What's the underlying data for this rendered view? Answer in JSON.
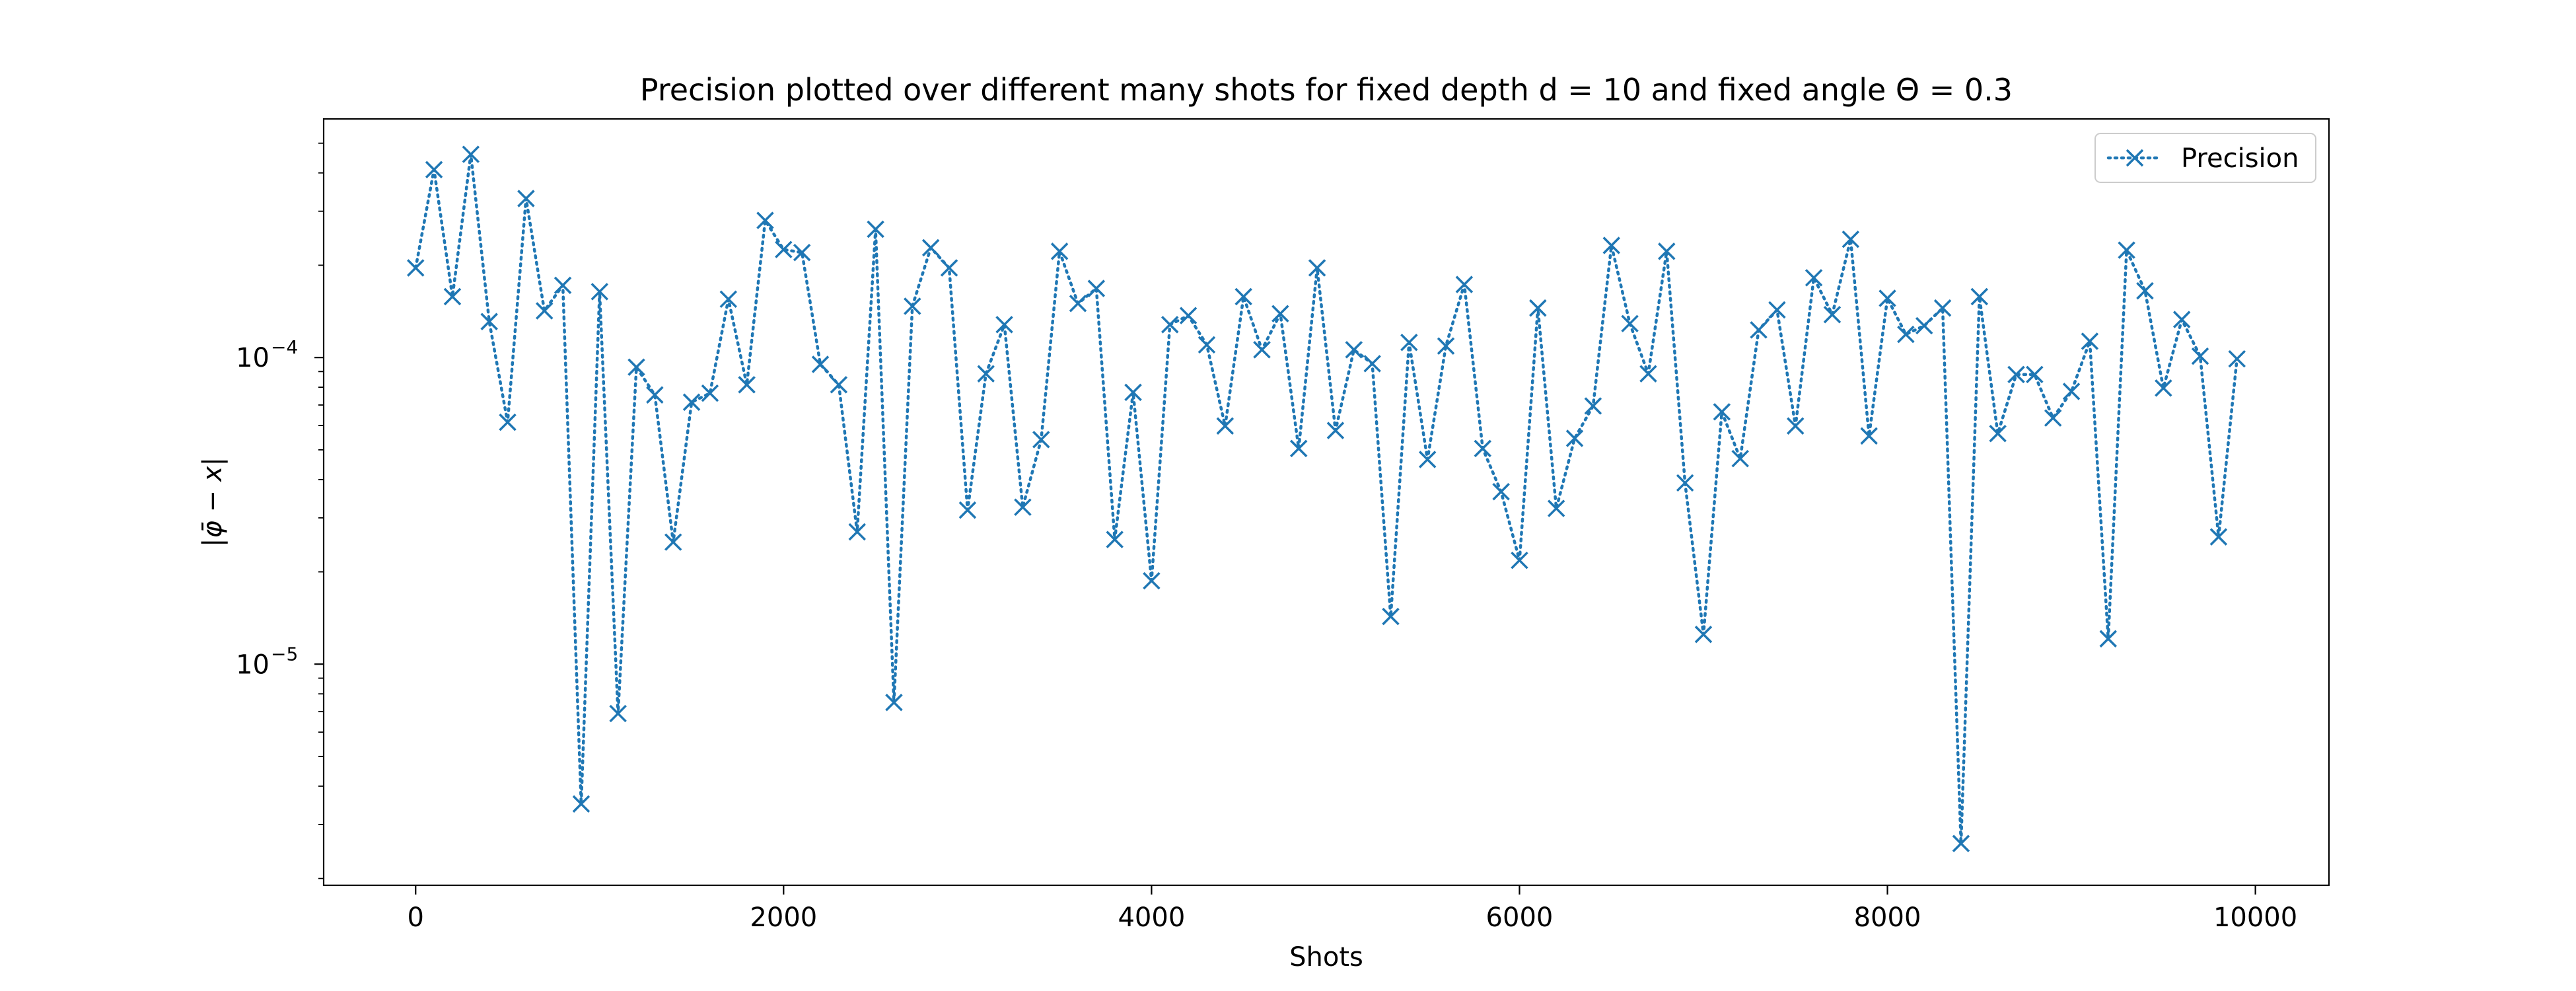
{
  "chart_data": {
    "type": "line",
    "title": "Precision plotted over different many shots for fixed depth d = 10 and fixed angle Θ = 0.3",
    "xlabel": "Shots",
    "ylabel": "|φ̄ − x|",
    "xlim": [
      -500,
      10400
    ],
    "ylim": [
      1.9e-06,
      0.0006
    ],
    "yscale": "log",
    "grid": false,
    "legend_position": "top-right",
    "x_ticks": [
      {
        "value": 0,
        "label": "0"
      },
      {
        "value": 2000,
        "label": "2000"
      },
      {
        "value": 4000,
        "label": "4000"
      },
      {
        "value": 6000,
        "label": "6000"
      },
      {
        "value": 8000,
        "label": "8000"
      },
      {
        "value": 10000,
        "label": "10000"
      }
    ],
    "y_ticks": [
      {
        "value": 1e-05,
        "label": "10",
        "exp": "−5"
      },
      {
        "value": 0.0001,
        "label": "10",
        "exp": "−4"
      }
    ],
    "series": [
      {
        "name": "Precision",
        "color": "#1f77b4",
        "linestyle": "dotted",
        "marker": "x",
        "x": [
          0,
          100,
          200,
          300,
          400,
          500,
          600,
          700,
          800,
          900,
          1000,
          1100,
          1200,
          1300,
          1400,
          1500,
          1600,
          1700,
          1800,
          1900,
          2000,
          2100,
          2200,
          2300,
          2400,
          2500,
          2600,
          2700,
          2800,
          2900,
          3000,
          3100,
          3200,
          3300,
          3400,
          3500,
          3600,
          3700,
          3800,
          3900,
          4000,
          4100,
          4200,
          4300,
          4400,
          4500,
          4600,
          4700,
          4800,
          4900,
          5000,
          5100,
          5200,
          5300,
          5400,
          5500,
          5600,
          5700,
          5800,
          5900,
          6000,
          6100,
          6200,
          6300,
          6400,
          6500,
          6600,
          6700,
          6800,
          6900,
          7000,
          7100,
          7200,
          7300,
          7400,
          7500,
          7600,
          7700,
          7800,
          7900,
          8000,
          8100,
          8200,
          8300,
          8400,
          8500,
          8600,
          8700,
          8800,
          8900,
          9000,
          9100,
          9200,
          9300,
          9400,
          9500,
          9600,
          9700,
          9800,
          9900
        ],
        "y": [
          0.000196,
          0.00041,
          0.000158,
          0.00046,
          0.000131,
          6.15e-05,
          0.00033,
          0.000142,
          0.000172,
          3.5e-06,
          0.000164,
          6.9e-06,
          9.3e-05,
          7.55e-05,
          2.5e-05,
          7.15e-05,
          7.65e-05,
          0.000155,
          8.15e-05,
          0.00028,
          0.000225,
          0.00022,
          9.5e-05,
          8.15e-05,
          2.7e-05,
          0.000262,
          7.5e-06,
          0.000147,
          0.000228,
          0.000196,
          3.18e-05,
          8.85e-05,
          0.000128,
          3.25e-05,
          5.4e-05,
          0.000222,
          0.00015,
          0.000168,
          2.55e-05,
          7.7e-05,
          1.87e-05,
          0.000128,
          0.000137,
          0.00011,
          5.98e-05,
          0.000158,
          0.000106,
          0.000139,
          5.05e-05,
          0.000196,
          5.78e-05,
          0.000106,
          9.55e-05,
          1.43e-05,
          0.000112,
          4.65e-05,
          0.000109,
          0.000173,
          5.05e-05,
          3.65e-05,
          2.18e-05,
          0.000145,
          3.22e-05,
          5.45e-05,
          6.95e-05,
          0.000232,
          0.000129,
          8.85e-05,
          0.000222,
          3.9e-05,
          1.25e-05,
          6.65e-05,
          4.68e-05,
          0.000123,
          0.000143,
          5.98e-05,
          0.000182,
          0.000138,
          0.000243,
          5.55e-05,
          0.000156,
          0.000119,
          0.000127,
          0.000145,
          2.6e-06,
          0.000158,
          5.65e-05,
          8.8e-05,
          8.8e-05,
          6.35e-05,
          7.75e-05,
          0.000113,
          1.21e-05,
          0.000224,
          0.000165,
          7.95e-05,
          0.000133,
          0.000101,
          2.6e-05,
          9.9e-05
        ]
      }
    ]
  }
}
